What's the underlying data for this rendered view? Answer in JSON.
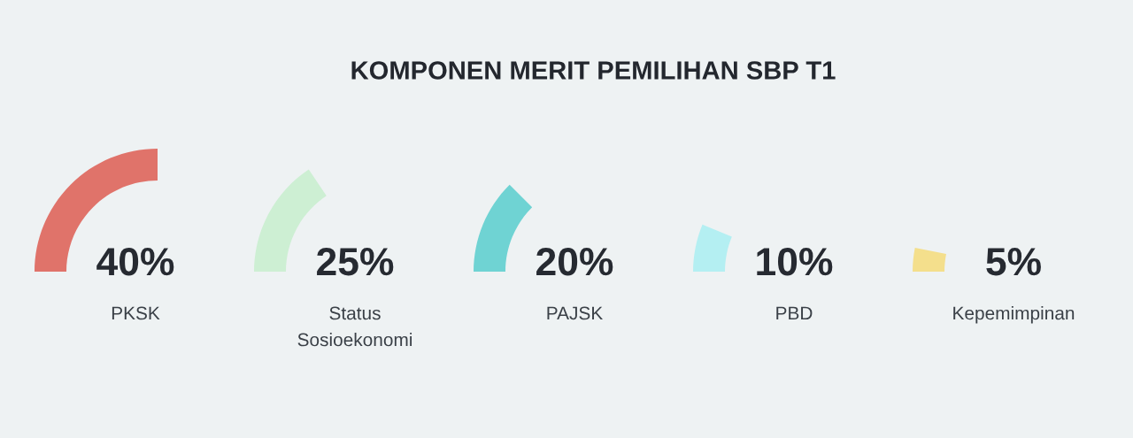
{
  "chart_data": {
    "type": "other",
    "title": "KOMPONEN MERIT PEMILIHAN SBP T1",
    "categories": [
      "PKSK",
      "Status\nSosioekonomi",
      "PAJSK",
      "PBD",
      "Kepemimpinan"
    ],
    "values": [
      40,
      25,
      20,
      10,
      5
    ],
    "value_labels": [
      "40%",
      "25%",
      "20%",
      "10%",
      "5%"
    ],
    "colors": [
      "#e0736a",
      "#cdefd3",
      "#6fd3d3",
      "#b4eff2",
      "#f4df8c"
    ]
  }
}
